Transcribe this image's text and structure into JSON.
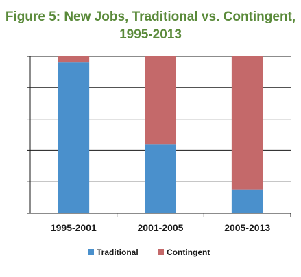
{
  "chart_data": {
    "type": "bar",
    "stacked": true,
    "percent": true,
    "title_line1": "Figure 5: New Jobs, Traditional vs. Contingent,",
    "title_line2": "1995-2013",
    "categories": [
      "1995-2001",
      "2001-2005",
      "2005-2013"
    ],
    "series": [
      {
        "name": "Traditional",
        "color": "#4a90cc",
        "values": [
          96,
          44,
          15
        ]
      },
      {
        "name": "Contingent",
        "color": "#c4696a",
        "values": [
          4,
          56,
          85
        ]
      }
    ],
    "ylim": [
      0,
      100
    ],
    "ytick_count": 5,
    "grid": true,
    "legend": "bottom"
  }
}
